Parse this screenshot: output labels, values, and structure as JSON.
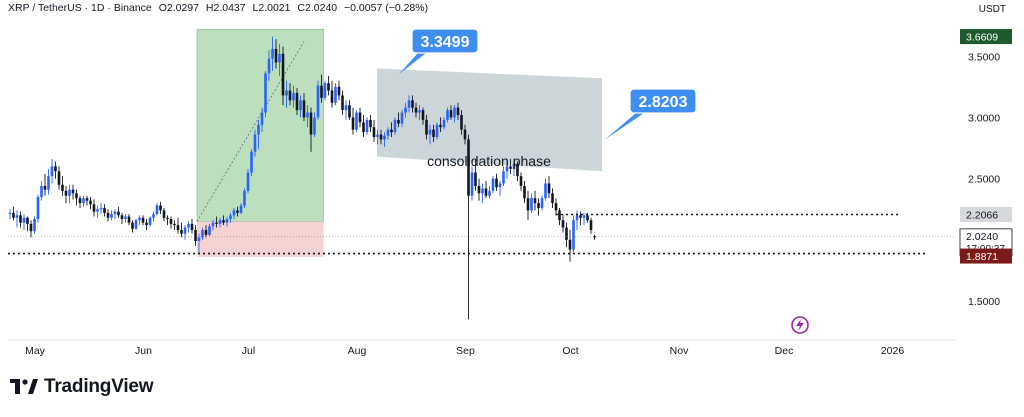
{
  "header": {
    "symbol": "XRP / TetherUS · 1D · Binance",
    "open": "O2.0297",
    "high": "H2.0437",
    "low": "L2.0021",
    "close": "C2.0240",
    "change": "−0.0057 (−0.28%)"
  },
  "currency": "USDT",
  "brand": "TradingView",
  "colors": {
    "up_candle": "#2962ff",
    "down_candle": "#131722",
    "profit_zone": "#a5d6a7",
    "loss_zone": "#f4c7c7",
    "consolidation_box": "#b7c4c8",
    "callout": "#3d8ef0",
    "badge_dark": "#1e5a2d",
    "badge_red": "#7a1a1a"
  },
  "chart_data": {
    "type": "candlestick",
    "ylim": [
      1.23,
      3.78
    ],
    "y_ticks": [
      "3.5000",
      "3.0000",
      "2.5000",
      "1.5000"
    ],
    "x_ticks": [
      "May",
      "Jun",
      "Jul",
      "Aug",
      "Sep",
      "Oct",
      "Nov",
      "Dec",
      "2026"
    ],
    "price_badges": {
      "high": "3.6609",
      "resistance": "2.2066",
      "last_price": "2.0240",
      "countdown": "17:00:37",
      "support": "1.8871"
    },
    "annotations": {
      "peak_callout": "3.3499",
      "breakdown_callout": "2.8203",
      "consolidation_label": "consolidation phase"
    },
    "levels": {
      "resistance": 2.2066,
      "support": 1.8871,
      "last": 2.024
    },
    "range_start": "2025-04-25",
    "candles": [
      [
        2.21,
        2.25,
        2.17,
        2.22
      ],
      [
        2.22,
        2.27,
        2.16,
        2.18
      ],
      [
        2.18,
        2.24,
        2.1,
        2.2
      ],
      [
        2.2,
        2.23,
        2.1,
        2.14
      ],
      [
        2.14,
        2.21,
        2.08,
        2.18
      ],
      [
        2.18,
        2.19,
        2.07,
        2.13
      ],
      [
        2.13,
        2.16,
        2.02,
        2.07
      ],
      [
        2.07,
        2.19,
        2.05,
        2.17
      ],
      [
        2.17,
        2.37,
        2.14,
        2.35
      ],
      [
        2.35,
        2.48,
        2.32,
        2.44
      ],
      [
        2.44,
        2.54,
        2.36,
        2.41
      ],
      [
        2.41,
        2.58,
        2.37,
        2.52
      ],
      [
        2.52,
        2.66,
        2.46,
        2.6
      ],
      [
        2.6,
        2.64,
        2.5,
        2.56
      ],
      [
        2.56,
        2.6,
        2.41,
        2.45
      ],
      [
        2.45,
        2.52,
        2.36,
        2.4
      ],
      [
        2.4,
        2.44,
        2.3,
        2.36
      ],
      [
        2.36,
        2.45,
        2.3,
        2.41
      ],
      [
        2.41,
        2.45,
        2.33,
        2.38
      ],
      [
        2.38,
        2.41,
        2.28,
        2.34
      ],
      [
        2.34,
        2.36,
        2.26,
        2.3
      ],
      [
        2.3,
        2.36,
        2.27,
        2.34
      ],
      [
        2.34,
        2.36,
        2.28,
        2.32
      ],
      [
        2.32,
        2.35,
        2.25,
        2.29
      ],
      [
        2.29,
        2.33,
        2.19,
        2.23
      ],
      [
        2.23,
        2.28,
        2.18,
        2.25
      ],
      [
        2.25,
        2.3,
        2.21,
        2.26
      ],
      [
        2.26,
        2.29,
        2.19,
        2.22
      ],
      [
        2.22,
        2.25,
        2.15,
        2.18
      ],
      [
        2.18,
        2.24,
        2.16,
        2.21
      ],
      [
        2.21,
        2.25,
        2.17,
        2.23
      ],
      [
        2.23,
        2.27,
        2.18,
        2.2
      ],
      [
        2.2,
        2.22,
        2.13,
        2.17
      ],
      [
        2.17,
        2.21,
        2.14,
        2.19
      ],
      [
        2.19,
        2.21,
        2.12,
        2.14
      ],
      [
        2.14,
        2.16,
        2.06,
        2.09
      ],
      [
        2.09,
        2.17,
        2.08,
        2.16
      ],
      [
        2.16,
        2.2,
        2.12,
        2.18
      ],
      [
        2.18,
        2.2,
        2.12,
        2.14
      ],
      [
        2.14,
        2.17,
        2.08,
        2.12
      ],
      [
        2.12,
        2.19,
        2.11,
        2.18
      ],
      [
        2.18,
        2.23,
        2.15,
        2.21
      ],
      [
        2.21,
        2.3,
        2.2,
        2.28
      ],
      [
        2.28,
        2.31,
        2.21,
        2.24
      ],
      [
        2.24,
        2.26,
        2.15,
        2.18
      ],
      [
        2.18,
        2.2,
        2.12,
        2.17
      ],
      [
        2.17,
        2.19,
        2.09,
        2.13
      ],
      [
        2.13,
        2.16,
        2.08,
        2.12
      ],
      [
        2.12,
        2.18,
        2.05,
        2.08
      ],
      [
        2.08,
        2.14,
        2.02,
        2.05
      ],
      [
        2.05,
        2.12,
        2.0,
        2.1
      ],
      [
        2.1,
        2.15,
        2.06,
        2.13
      ],
      [
        2.13,
        2.17,
        2.05,
        2.08
      ],
      [
        2.08,
        2.12,
        1.95,
        1.99
      ],
      [
        1.99,
        2.05,
        1.89,
        2.02
      ],
      [
        2.02,
        2.1,
        2.0,
        2.08
      ],
      [
        2.08,
        2.12,
        2.02,
        2.04
      ],
      [
        2.04,
        2.13,
        2.03,
        2.11
      ],
      [
        2.11,
        2.16,
        2.08,
        2.14
      ],
      [
        2.14,
        2.19,
        2.1,
        2.13
      ],
      [
        2.13,
        2.18,
        2.1,
        2.16
      ],
      [
        2.16,
        2.2,
        2.12,
        2.14
      ],
      [
        2.14,
        2.19,
        2.11,
        2.17
      ],
      [
        2.17,
        2.22,
        2.14,
        2.2
      ],
      [
        2.2,
        2.26,
        2.17,
        2.24
      ],
      [
        2.24,
        2.27,
        2.19,
        2.22
      ],
      [
        2.22,
        2.3,
        2.21,
        2.28
      ],
      [
        2.28,
        2.42,
        2.26,
        2.4
      ],
      [
        2.4,
        2.58,
        2.38,
        2.55
      ],
      [
        2.55,
        2.74,
        2.52,
        2.72
      ],
      [
        2.72,
        2.9,
        2.68,
        2.86
      ],
      [
        2.86,
        2.98,
        2.74,
        2.94
      ],
      [
        2.94,
        3.08,
        2.88,
        3.04
      ],
      [
        3.04,
        3.38,
        3.0,
        3.36
      ],
      [
        3.36,
        3.55,
        3.3,
        3.48
      ],
      [
        3.48,
        3.66,
        3.38,
        3.56
      ],
      [
        3.56,
        3.64,
        3.4,
        3.45
      ],
      [
        3.45,
        3.6,
        3.34,
        3.52
      ],
      [
        3.52,
        3.58,
        3.1,
        3.18
      ],
      [
        3.18,
        3.3,
        3.08,
        3.22
      ],
      [
        3.22,
        3.28,
        3.1,
        3.14
      ],
      [
        3.14,
        3.26,
        3.08,
        3.2
      ],
      [
        3.2,
        3.24,
        3.02,
        3.06
      ],
      [
        3.06,
        3.18,
        3.0,
        3.14
      ],
      [
        3.14,
        3.2,
        2.97,
        3.0
      ],
      [
        3.0,
        3.1,
        2.92,
        3.04
      ],
      [
        3.04,
        3.08,
        2.72,
        2.86
      ],
      [
        2.86,
        3.04,
        2.84,
        3.0
      ],
      [
        3.0,
        3.3,
        2.98,
        3.26
      ],
      [
        3.26,
        3.35,
        3.12,
        3.16
      ],
      [
        3.16,
        3.3,
        3.14,
        3.28
      ],
      [
        3.28,
        3.34,
        3.18,
        3.22
      ],
      [
        3.22,
        3.3,
        3.08,
        3.12
      ],
      [
        3.12,
        3.28,
        3.1,
        3.25
      ],
      [
        3.25,
        3.3,
        3.14,
        3.18
      ],
      [
        3.18,
        3.22,
        3.02,
        3.06
      ],
      [
        3.06,
        3.14,
        2.98,
        3.1
      ],
      [
        3.1,
        3.14,
        2.98,
        3.0
      ],
      [
        3.0,
        3.08,
        2.86,
        2.9
      ],
      [
        2.9,
        3.06,
        2.88,
        3.04
      ],
      [
        3.04,
        3.08,
        2.92,
        2.96
      ],
      [
        2.96,
        3.02,
        2.84,
        2.88
      ],
      [
        2.88,
        3.0,
        2.86,
        2.98
      ],
      [
        2.98,
        3.02,
        2.88,
        2.92
      ],
      [
        2.92,
        2.98,
        2.8,
        2.84
      ],
      [
        2.84,
        2.9,
        2.78,
        2.86
      ],
      [
        2.86,
        2.9,
        2.78,
        2.82
      ],
      [
        2.82,
        2.88,
        2.76,
        2.85
      ],
      [
        2.85,
        2.92,
        2.82,
        2.9
      ],
      [
        2.9,
        2.96,
        2.84,
        2.88
      ],
      [
        2.88,
        3.0,
        2.86,
        2.98
      ],
      [
        2.98,
        3.04,
        2.92,
        2.95
      ],
      [
        2.95,
        3.06,
        2.92,
        3.04
      ],
      [
        3.04,
        3.12,
        3.0,
        3.08
      ],
      [
        3.08,
        3.18,
        3.04,
        3.14
      ],
      [
        3.14,
        3.18,
        3.04,
        3.08
      ],
      [
        3.08,
        3.12,
        3.0,
        3.04
      ],
      [
        3.04,
        3.1,
        2.98,
        3.06
      ],
      [
        3.06,
        3.08,
        2.94,
        2.98
      ],
      [
        2.98,
        3.02,
        2.82,
        2.86
      ],
      [
        2.86,
        2.94,
        2.78,
        2.9
      ],
      [
        2.9,
        2.94,
        2.8,
        2.84
      ],
      [
        2.84,
        2.96,
        2.82,
        2.94
      ],
      [
        2.94,
        3.0,
        2.88,
        2.92
      ],
      [
        2.92,
        3.0,
        2.9,
        2.98
      ],
      [
        2.98,
        3.08,
        2.96,
        3.06
      ],
      [
        3.06,
        3.1,
        2.98,
        3.0
      ],
      [
        3.0,
        3.1,
        2.96,
        3.08
      ],
      [
        3.08,
        3.12,
        2.98,
        3.02
      ],
      [
        3.02,
        3.06,
        2.86,
        2.9
      ],
      [
        2.9,
        2.94,
        2.78,
        2.82
      ],
      [
        2.82,
        2.86,
        1.35,
        2.36
      ],
      [
        2.36,
        2.6,
        2.32,
        2.55
      ],
      [
        2.55,
        2.66,
        2.4,
        2.44
      ],
      [
        2.44,
        2.5,
        2.32,
        2.38
      ],
      [
        2.38,
        2.46,
        2.3,
        2.42
      ],
      [
        2.42,
        2.48,
        2.34,
        2.36
      ],
      [
        2.36,
        2.44,
        2.34,
        2.4
      ],
      [
        2.4,
        2.52,
        2.38,
        2.5
      ],
      [
        2.5,
        2.54,
        2.4,
        2.43
      ],
      [
        2.43,
        2.48,
        2.36,
        2.46
      ],
      [
        2.46,
        2.6,
        2.44,
        2.56
      ],
      [
        2.56,
        2.64,
        2.5,
        2.6
      ],
      [
        2.6,
        2.66,
        2.54,
        2.58
      ],
      [
        2.58,
        2.64,
        2.52,
        2.62
      ],
      [
        2.62,
        2.64,
        2.48,
        2.52
      ],
      [
        2.52,
        2.55,
        2.4,
        2.44
      ],
      [
        2.44,
        2.48,
        2.3,
        2.34
      ],
      [
        2.34,
        2.4,
        2.16,
        2.24
      ],
      [
        2.24,
        2.38,
        2.22,
        2.34
      ],
      [
        2.34,
        2.4,
        2.24,
        2.3
      ],
      [
        2.3,
        2.34,
        2.2,
        2.26
      ],
      [
        2.26,
        2.36,
        2.24,
        2.34
      ],
      [
        2.34,
        2.5,
        2.32,
        2.46
      ],
      [
        2.46,
        2.52,
        2.34,
        2.38
      ],
      [
        2.38,
        2.42,
        2.26,
        2.3
      ],
      [
        2.3,
        2.34,
        2.2,
        2.24
      ],
      [
        2.24,
        2.26,
        2.12,
        2.16
      ],
      [
        2.16,
        2.2,
        2.06,
        2.1
      ],
      [
        2.1,
        2.14,
        1.94,
        2.0
      ],
      [
        2.0,
        2.08,
        1.82,
        1.92
      ],
      [
        1.92,
        2.2,
        1.9,
        2.16
      ],
      [
        2.16,
        2.24,
        2.08,
        2.2
      ],
      [
        2.2,
        2.23,
        2.12,
        2.18
      ],
      [
        2.18,
        2.22,
        2.12,
        2.2
      ],
      [
        2.2,
        2.22,
        2.14,
        2.16
      ],
      [
        2.16,
        2.18,
        2.05,
        2.08
      ],
      [
        2.03,
        2.04,
        2.0,
        2.02
      ]
    ]
  }
}
